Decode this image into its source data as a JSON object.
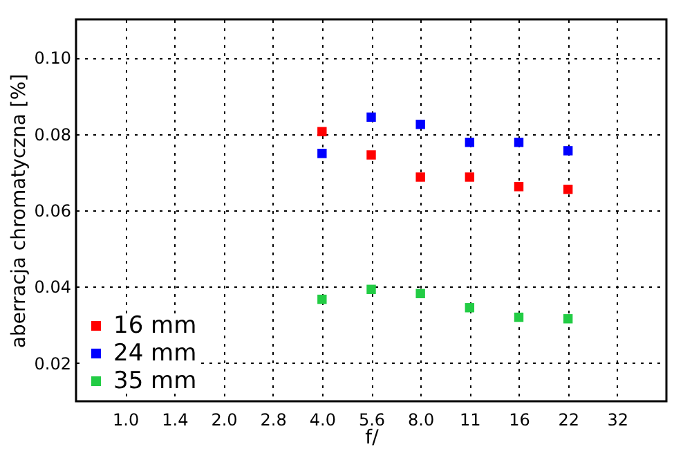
{
  "chart_data": {
    "type": "scatter",
    "xlabel": "f/",
    "ylabel": "aberracja chromatyczna [%]",
    "categories": [
      "1.0",
      "1.4",
      "2.0",
      "2.8",
      "4.0",
      "5.6",
      "8.0",
      "11",
      "16",
      "22",
      "32"
    ],
    "series": [
      {
        "name": "16 mm",
        "color": "#ff0000",
        "values": [
          null,
          null,
          null,
          null,
          0.0806,
          0.0745,
          0.0687,
          0.0687,
          0.0662,
          0.0655,
          null
        ]
      },
      {
        "name": "24 mm",
        "color": "#0000ff",
        "values": [
          null,
          null,
          null,
          null,
          0.0749,
          0.0844,
          0.0825,
          0.0778,
          0.0778,
          0.0756,
          null
        ]
      },
      {
        "name": "35 mm",
        "color": "#22cc44",
        "values": [
          null,
          null,
          null,
          null,
          0.0367,
          0.0393,
          0.0382,
          0.0345,
          0.032,
          0.0316,
          null
        ]
      }
    ],
    "ylim": [
      0.01,
      0.11
    ],
    "yticks": [
      {
        "value": 0.02,
        "label": "0.02"
      },
      {
        "value": 0.04,
        "label": "0.04"
      },
      {
        "value": 0.06,
        "label": "0.06"
      },
      {
        "value": 0.08,
        "label": "0.08"
      },
      {
        "value": 0.1,
        "label": "0.10"
      }
    ],
    "grid": true,
    "legend": "bottom left",
    "marker": "square"
  }
}
